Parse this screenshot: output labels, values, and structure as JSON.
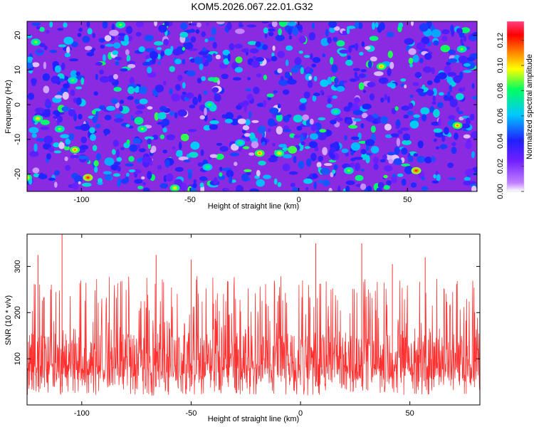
{
  "chart_data": [
    {
      "type": "heatmap",
      "title": "KOM5.2026.067.22.01.G32",
      "xlabel": "Height of straight line (km)",
      "ylabel": "Frequency (Hz)",
      "xlim": [
        -125,
        82
      ],
      "ylim": [
        -25,
        24
      ],
      "xticks": [
        -100,
        -50,
        0,
        50
      ],
      "yticks": [
        20,
        10,
        0,
        -10,
        -20
      ],
      "colorbar": {
        "label": "Normalized spectral amplitude",
        "range": [
          0.0,
          0.135
        ],
        "ticks": [
          "0.00",
          "0.02",
          "0.04",
          "0.06",
          "0.08",
          "0.10",
          "0.12"
        ],
        "colors": [
          "#ffffff",
          "#c080ff",
          "#7020ff",
          "#2020ff",
          "#00c8ff",
          "#00ff60",
          "#ffff00",
          "#ff8000",
          "#ff0000",
          "#ff4080"
        ]
      },
      "hot_spots": [
        {
          "x": -121,
          "y": 18,
          "v": 0.09
        },
        {
          "x": -104,
          "y": 7,
          "v": 0.085
        },
        {
          "x": -82,
          "y": 23,
          "v": 0.09
        },
        {
          "x": 38,
          "y": 11,
          "v": 0.105
        },
        {
          "x": 75,
          "y": 16,
          "v": 0.09
        },
        {
          "x": -120,
          "y": -4,
          "v": 0.1
        },
        {
          "x": -110,
          "y": -7,
          "v": 0.09
        },
        {
          "x": -103,
          "y": -13,
          "v": 0.11
        },
        {
          "x": -97,
          "y": -21,
          "v": 0.12
        },
        {
          "x": -72,
          "y": -7,
          "v": 0.09
        },
        {
          "x": -57,
          "y": -24,
          "v": 0.1
        },
        {
          "x": -27,
          "y": -11,
          "v": 0.08
        },
        {
          "x": -18,
          "y": -14,
          "v": 0.11
        },
        {
          "x": -9,
          "y": -14,
          "v": 0.1
        },
        {
          "x": -41,
          "y": 0,
          "v": 0.085
        },
        {
          "x": 23,
          "y": -19,
          "v": 0.09
        },
        {
          "x": 54,
          "y": -19,
          "v": 0.12
        },
        {
          "x": 73,
          "y": -6,
          "v": 0.11
        },
        {
          "x": 17,
          "y": -2,
          "v": 0.08
        },
        {
          "x": -42,
          "y": -18,
          "v": 0.08
        },
        {
          "x": -125,
          "y": -21,
          "v": 0.1
        }
      ]
    },
    {
      "type": "line",
      "title": "",
      "xlabel": "Height of straight line (km)",
      "ylabel": "SNR (10 * v/v)",
      "xlim": [
        -125,
        82
      ],
      "ylim": [
        0,
        370
      ],
      "xticks": [
        -100,
        -50,
        0,
        50
      ],
      "yticks": [
        100,
        200,
        300
      ],
      "color": "#ff3030",
      "n_points": 1400,
      "mean": 105,
      "peaks": [
        {
          "x": -109,
          "y": 370
        },
        {
          "x": 7,
          "y": 350
        },
        {
          "x": 28,
          "y": 350
        },
        {
          "x": -120,
          "y": 325
        },
        {
          "x": -66,
          "y": 325
        },
        {
          "x": 57,
          "y": 320
        },
        {
          "x": -50,
          "y": 315
        },
        {
          "x": 42,
          "y": 305
        }
      ]
    }
  ]
}
